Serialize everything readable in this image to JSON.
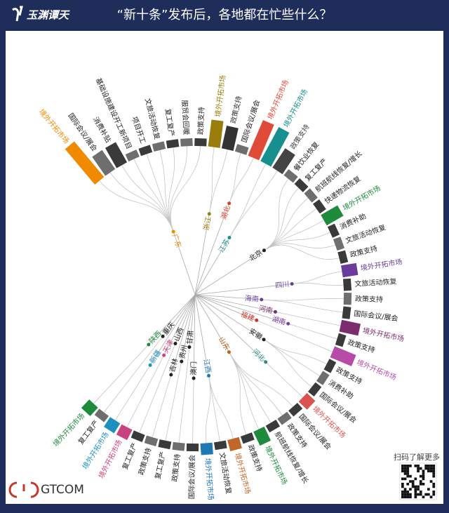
{
  "header": {
    "logo": "玉渊谭天"
  },
  "chart_data": {
    "type": "radial_tree",
    "title": "“新十条”发布后，各地都在忙些什么？",
    "groups": [
      {
        "name": "广东",
        "color": "#f08a00",
        "leaves": [
          {
            "label": "境外开拓市场",
            "value": 6,
            "color": "#f08a00"
          },
          {
            "label": "国际会议/展会",
            "value": 3
          },
          {
            "label": "消费补贴",
            "value": 3
          },
          {
            "label": "基础设施建设开工新项目",
            "value": 1
          },
          {
            "label": "项目开工",
            "value": 1
          },
          {
            "label": "文旅活动恢复",
            "value": 1
          },
          {
            "label": "复工复产",
            "value": 1
          },
          {
            "label": "服贸会回暖",
            "value": 1
          },
          {
            "label": "政策支持",
            "value": 1
          }
        ]
      },
      {
        "name": "浙江",
        "color": "#9a7d0a",
        "leaves": [
          {
            "label": "境外开拓市场",
            "value": 3.5,
            "color": "#9a7d0a"
          },
          {
            "label": "政策支持",
            "value": 3,
            "color": "#333333"
          }
        ]
      },
      {
        "name": "湖北",
        "color": "#d94030",
        "leaves": [
          {
            "label": "国际会议/展会",
            "value": 1
          },
          {
            "label": "境外开拓市场",
            "value": 5,
            "color": "#e04a38"
          }
        ]
      },
      {
        "name": "江苏",
        "color": "#17908f",
        "leaves": [
          {
            "label": "境外开拓市场",
            "value": 5,
            "color": "#17908f"
          },
          {
            "label": "政策支持",
            "value": 3,
            "color": "#444444"
          }
        ]
      },
      {
        "name": "北京",
        "color": "#222222",
        "leaves": [
          {
            "label": "餐饮业恢复",
            "value": 1
          },
          {
            "label": "复工复产",
            "value": 1
          },
          {
            "label": "航班航线恢复/增长",
            "value": 1
          },
          {
            "label": "快递物流恢复",
            "value": 1
          },
          {
            "label": "境外开拓市场",
            "value": 2.5,
            "color": "#1e8a3c"
          },
          {
            "label": "消费补助",
            "value": 1
          },
          {
            "label": "文旅活动恢复",
            "value": 1
          },
          {
            "label": "政策支持",
            "value": 1
          }
        ]
      },
      {
        "name": "四川",
        "color": "#6a3d9a",
        "leaves": [
          {
            "label": "境外开拓市场",
            "value": 2,
            "color": "#6a3d9a"
          },
          {
            "label": "文旅活动恢复",
            "value": 1
          }
        ]
      },
      {
        "name": "海南",
        "color": "#6a3d9a",
        "leaves": [
          {
            "label": "政策支持",
            "value": 1
          },
          {
            "label": "国际会议/展会",
            "value": 1
          }
        ]
      },
      {
        "name": "河南",
        "color": "#7b2d6e",
        "leaves": [
          {
            "label": "境外开拓市场",
            "value": 2.5,
            "color": "#7b2d6e"
          }
        ]
      },
      {
        "name": "湖南",
        "color": "#7b3fa0",
        "leaves": [
          {
            "label": "政策支持",
            "value": 1
          }
        ]
      },
      {
        "name": "福建",
        "color": "#c0392b",
        "leaves": [
          {
            "label": "境外开拓市场",
            "value": 3,
            "color": "#b84aa8"
          }
        ]
      },
      {
        "name": "安徽",
        "color": "#222222",
        "leaves": [
          {
            "label": "政策支持",
            "value": 1
          },
          {
            "label": "消费补助",
            "value": 1
          },
          {
            "label": "国际会议/展会",
            "value": 1
          }
        ]
      },
      {
        "name": "河北",
        "color": "#2a8a8a",
        "leaves": [
          {
            "label": "境外开拓市场",
            "value": 1.5,
            "color": "#d9534f"
          }
        ]
      },
      {
        "name": "山东",
        "color": "#b5651d",
        "leaves": [
          {
            "label": "国际会议/展会",
            "value": 1
          },
          {
            "label": "政策支持",
            "value": 1
          },
          {
            "label": "航班航线恢复/增长",
            "value": 1
          },
          {
            "label": "境外开拓市场",
            "value": 2,
            "color": "#1e8a3c"
          },
          {
            "label": "政策支持",
            "value": 1
          }
        ]
      },
      {
        "name": "江西",
        "color": "#1f77b4",
        "leaves": [
          {
            "label": "境外开拓市场",
            "value": 1.5,
            "color": "#c0662a"
          },
          {
            "label": "文旅活动恢复",
            "value": 1
          },
          {
            "label": "境外开拓市场",
            "value": 1.5,
            "color": "#1f77b4"
          }
        ]
      },
      {
        "name": "澳门",
        "color": "#222222",
        "leaves": [
          {
            "label": "国际会议/展会",
            "value": 1
          }
        ]
      },
      {
        "name": "甘肃",
        "color": "#222222",
        "leaves": [
          {
            "label": "政策支持",
            "value": 1
          }
        ]
      },
      {
        "name": "贵州",
        "color": "#222222",
        "leaves": [
          {
            "label": "复工复产",
            "value": 1
          }
        ]
      },
      {
        "name": "吉林",
        "color": "#222222",
        "leaves": [
          {
            "label": "政策支持",
            "value": 1
          }
        ]
      },
      {
        "name": "山西",
        "color": "#222222",
        "leaves": [
          {
            "label": "复工复产",
            "value": 1
          }
        ]
      },
      {
        "name": "天津",
        "color": "#c9447f",
        "leaves": [
          {
            "label": "境外开拓市场",
            "value": 1.5,
            "color": "#c9447f"
          }
        ]
      },
      {
        "name": "新疆",
        "color": "#1f8fbf",
        "leaves": [
          {
            "label": "境外开拓市场",
            "value": 1.5,
            "color": "#1f8fbf"
          }
        ]
      },
      {
        "name": "重庆",
        "color": "#222222",
        "leaves": [
          {
            "label": "复工复产",
            "value": 1
          }
        ]
      },
      {
        "name": "陕西",
        "color": "#1e8a3c",
        "leaves": [
          {
            "label": "境外开拓市场",
            "value": 1.5,
            "color": "#1e8a3c"
          }
        ]
      }
    ]
  },
  "footer": {
    "brand": "GTCOM",
    "qr_caption": "扫码了解更多"
  }
}
